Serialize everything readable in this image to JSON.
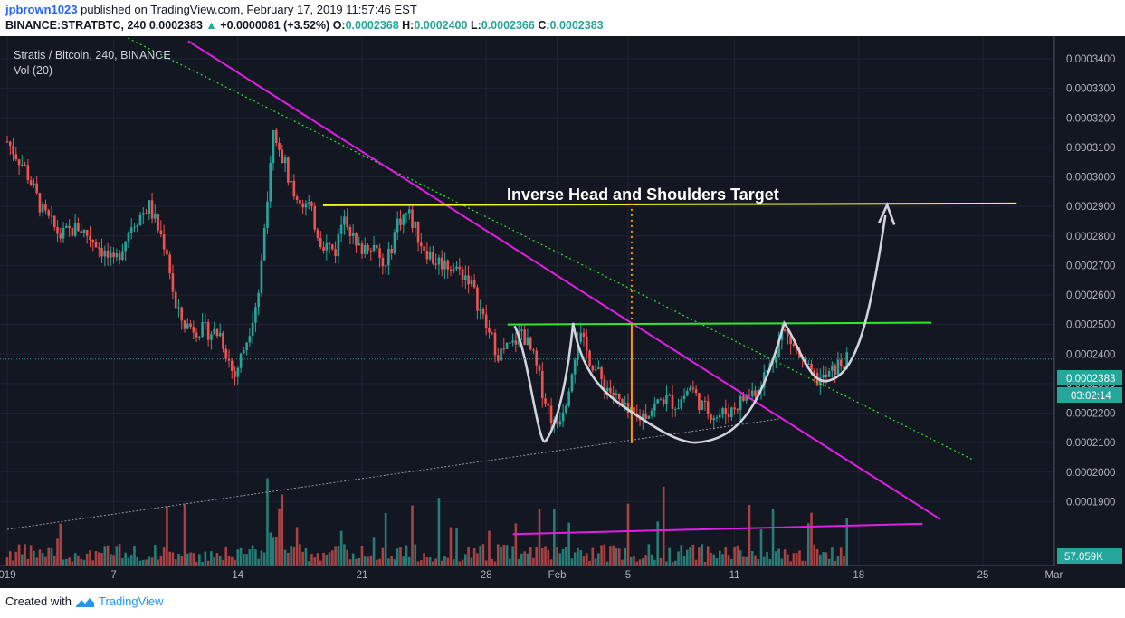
{
  "header": {
    "user": "jpbrown1023",
    "published_text": "published on TradingView.com, February 17, 2019 11:57:46 EST",
    "symbol": "BINANCE:STRATBTC, 240",
    "last": "0.0002383",
    "change": "+0.0000081 (+3.52%)",
    "o_label": "O:",
    "o_value": "0.0002368",
    "h_label": "H:",
    "h_value": "0.0002400",
    "l_label": "L:",
    "l_value": "0.0002366",
    "c_label": "C:",
    "c_value": "0.0002383"
  },
  "legend": {
    "title": "Stratis / Bitcoin, 240, BINANCE",
    "volume": "Vol (20)"
  },
  "annotation": "Inverse Head and Shoulders Target",
  "price_badge": "0.0002383",
  "timer_badge": "03:02:14",
  "volume_badge": "57.059K",
  "footer": {
    "created_with": "Created with",
    "brand": "TradingView"
  },
  "colors": {
    "up": "#26a69a",
    "down": "#ef5350",
    "vol_up": "#2a8f86",
    "vol_down": "#c64a4a",
    "chart_bg": "#131722",
    "magenta": "#e21ee6",
    "yellow": "#f5f52b",
    "green": "#2ee82e",
    "orange": "#ff9800",
    "price_badge": "#26a69a"
  },
  "chart_data": {
    "type": "candlestick",
    "title": "Stratis / Bitcoin, 240, BINANCE",
    "y_axis_ticks": [
      "0.0003400",
      "0.0003300",
      "0.0003200",
      "0.0003100",
      "0.0003000",
      "0.0002900",
      "0.0002800",
      "0.0002700",
      "0.0002600",
      "0.0002500",
      "0.0002400",
      "0.0002300",
      "0.0002200",
      "0.0002100",
      "0.0002000",
      "0.0001900"
    ],
    "y_range": [
      0.00018,
      0.000346
    ],
    "x_range": [
      0,
      69
    ],
    "x_ticks": [
      {
        "label": "019",
        "day": 0
      },
      {
        "label": "7",
        "day": 6
      },
      {
        "label": "14",
        "day": 13
      },
      {
        "label": "21",
        "day": 20
      },
      {
        "label": "28",
        "day": 27
      },
      {
        "label": "Feb",
        "day": 31
      },
      {
        "label": "5",
        "day": 35
      },
      {
        "label": "11",
        "day": 41
      },
      {
        "label": "18",
        "day": 48
      },
      {
        "label": "25",
        "day": 55
      },
      {
        "label": "Mar",
        "day": 59
      }
    ],
    "key_prices": [
      {
        "day": 0,
        "close": 0.000312
      },
      {
        "day": 1,
        "close": 0.000303
      },
      {
        "day": 2,
        "close": 0.000288
      },
      {
        "day": 3,
        "close": 0.00028
      },
      {
        "day": 4,
        "close": 0.000283
      },
      {
        "day": 5,
        "close": 0.000278
      },
      {
        "day": 6,
        "close": 0.00027
      },
      {
        "day": 7,
        "close": 0.000284
      },
      {
        "day": 8,
        "close": 0.00029
      },
      {
        "day": 9,
        "close": 0.000275
      },
      {
        "day": 9.5,
        "close": 0.000255
      },
      {
        "day": 10,
        "close": 0.00025
      },
      {
        "day": 11,
        "close": 0.000248
      },
      {
        "day": 12,
        "close": 0.000247
      },
      {
        "day": 12.8,
        "close": 0.000232
      },
      {
        "day": 13.5,
        "close": 0.000245
      },
      {
        "day": 14.2,
        "close": 0.000262
      },
      {
        "day": 15,
        "close": 0.000318
      },
      {
        "day": 15.6,
        "close": 0.000305
      },
      {
        "day": 16.3,
        "close": 0.000293
      },
      {
        "day": 17,
        "close": 0.00029
      },
      {
        "day": 17.7,
        "close": 0.000278
      },
      {
        "day": 18.5,
        "close": 0.000275
      },
      {
        "day": 19,
        "close": 0.000289
      },
      {
        "day": 19.7,
        "close": 0.000275
      },
      {
        "day": 20.5,
        "close": 0.000278
      },
      {
        "day": 21.3,
        "close": 0.000268
      },
      {
        "day": 22,
        "close": 0.000285
      },
      {
        "day": 22.6,
        "close": 0.000288
      },
      {
        "day": 23.3,
        "close": 0.000278
      },
      {
        "day": 24,
        "close": 0.000272
      },
      {
        "day": 25,
        "close": 0.00027
      },
      {
        "day": 26,
        "close": 0.000266
      },
      {
        "day": 27,
        "close": 0.000249
      },
      {
        "day": 27.7,
        "close": 0.00024
      },
      {
        "day": 28.5,
        "close": 0.000243
      },
      {
        "day": 29,
        "close": 0.000248
      },
      {
        "day": 29.7,
        "close": 0.000238
      },
      {
        "day": 30.3,
        "close": 0.000225
      },
      {
        "day": 30.9,
        "close": 0.000215
      },
      {
        "day": 31.5,
        "close": 0.000225
      },
      {
        "day": 32.2,
        "close": 0.000247
      },
      {
        "day": 32.8,
        "close": 0.000239
      },
      {
        "day": 33.5,
        "close": 0.000231
      },
      {
        "day": 34.2,
        "close": 0.000226
      },
      {
        "day": 34.9,
        "close": 0.00022
      },
      {
        "day": 35.5,
        "close": 0.000218
      },
      {
        "day": 36.2,
        "close": 0.000221
      },
      {
        "day": 37,
        "close": 0.000225
      },
      {
        "day": 37.8,
        "close": 0.000223
      },
      {
        "day": 38.5,
        "close": 0.000229
      },
      {
        "day": 39.2,
        "close": 0.000222
      },
      {
        "day": 40,
        "close": 0.000219
      },
      {
        "day": 40.8,
        "close": 0.000221
      },
      {
        "day": 41.5,
        "close": 0.000225
      },
      {
        "day": 42.2,
        "close": 0.000228
      },
      {
        "day": 43,
        "close": 0.000236
      },
      {
        "day": 43.7,
        "close": 0.000248
      },
      {
        "day": 44.3,
        "close": 0.000243
      },
      {
        "day": 45,
        "close": 0.000235
      },
      {
        "day": 45.6,
        "close": 0.000231
      },
      {
        "day": 46.2,
        "close": 0.000232
      },
      {
        "day": 46.8,
        "close": 0.000236
      },
      {
        "day": 47.4,
        "close": 0.000238
      }
    ],
    "drawings": {
      "target_line_price": 0.000291,
      "neckline_price": 0.00025,
      "head_low_price": 0.000211,
      "left_shoulder_low_price": 0.000212,
      "right_shoulder_low_price": 0.000231
    },
    "last_price": 0.0002383
  }
}
